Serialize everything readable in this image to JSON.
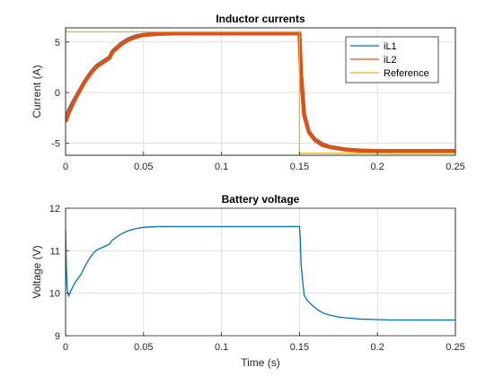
{
  "chart_data": [
    {
      "type": "line",
      "title": "Inductor currents",
      "xlabel": "",
      "ylabel": "Current (A)",
      "xlim": [
        0,
        0.25
      ],
      "ylim": [
        -6.2,
        6.4
      ],
      "xticks": [
        0,
        0.05,
        0.1,
        0.15,
        0.2,
        0.25
      ],
      "xtick_labels": [
        "0",
        "0.05",
        "0.1",
        "0.15",
        "0.2",
        "0.25"
      ],
      "yticks": [
        -5,
        0,
        5
      ],
      "ytick_labels": [
        "-5",
        "0",
        "5"
      ],
      "grid": true,
      "legend": {
        "position": "top-right",
        "entries": [
          "iL1",
          "iL2",
          "Reference"
        ]
      },
      "series": [
        {
          "name": "iL1",
          "color": "#0072BD",
          "x": [
            0,
            0.002,
            0.005,
            0.008,
            0.012,
            0.016,
            0.02,
            0.025,
            0.028,
            0.03,
            0.035,
            0.04,
            0.045,
            0.05,
            0.06,
            0.07,
            0.08,
            0.1,
            0.12,
            0.14,
            0.1495,
            0.15,
            0.151,
            0.153,
            0.156,
            0.16,
            0.165,
            0.17,
            0.18,
            0.19,
            0.2,
            0.22,
            0.25
          ],
          "y": [
            -2.6,
            -1.7,
            -0.8,
            0.0,
            1.1,
            2.0,
            2.7,
            3.2,
            3.5,
            4.1,
            4.8,
            5.3,
            5.6,
            5.75,
            5.85,
            5.9,
            5.9,
            5.9,
            5.9,
            5.9,
            5.9,
            5.9,
            2.0,
            -2.0,
            -3.8,
            -4.6,
            -5.1,
            -5.35,
            -5.6,
            -5.7,
            -5.75,
            -5.75,
            -5.75
          ]
        },
        {
          "name": "iL2",
          "color": "#D95319",
          "x": [
            0,
            0.002,
            0.005,
            0.008,
            0.012,
            0.016,
            0.02,
            0.025,
            0.028,
            0.03,
            0.035,
            0.04,
            0.045,
            0.05,
            0.06,
            0.07,
            0.08,
            0.1,
            0.12,
            0.14,
            0.1495,
            0.15,
            0.151,
            0.153,
            0.156,
            0.16,
            0.165,
            0.17,
            0.18,
            0.19,
            0.2,
            0.22,
            0.25
          ],
          "y": [
            -2.9,
            -2.0,
            -1.0,
            -0.1,
            1.0,
            1.9,
            2.6,
            3.1,
            3.4,
            4.0,
            4.7,
            5.2,
            5.5,
            5.7,
            5.8,
            5.85,
            5.85,
            5.85,
            5.85,
            5.85,
            5.85,
            5.85,
            1.8,
            -2.2,
            -3.9,
            -4.7,
            -5.2,
            -5.4,
            -5.65,
            -5.75,
            -5.8,
            -5.8,
            -5.8
          ]
        },
        {
          "name": "Reference",
          "color": "#EDB120",
          "x": [
            0,
            0.15,
            0.15,
            0.25
          ],
          "y": [
            6,
            6,
            -6,
            -6
          ]
        }
      ]
    },
    {
      "type": "line",
      "title": "Battery voltage",
      "xlabel": "Time (s)",
      "ylabel": "Voltage (V)",
      "xlim": [
        0,
        0.25
      ],
      "ylim": [
        9,
        12
      ],
      "xticks": [
        0,
        0.05,
        0.1,
        0.15,
        0.2,
        0.25
      ],
      "xtick_labels": [
        "0",
        "0.05",
        "0.1",
        "0.15",
        "0.2",
        "0.25"
      ],
      "yticks": [
        9,
        10,
        11,
        12
      ],
      "ytick_labels": [
        "9",
        "10",
        "11",
        "12"
      ],
      "grid": true,
      "series": [
        {
          "color": "#0072BD",
          "x": [
            0,
            0.0005,
            0.001,
            0.002,
            0.004,
            0.006,
            0.008,
            0.01,
            0.012,
            0.015,
            0.018,
            0.02,
            0.025,
            0.028,
            0.03,
            0.035,
            0.04,
            0.045,
            0.05,
            0.055,
            0.06,
            0.08,
            0.1,
            0.12,
            0.14,
            0.1495,
            0.15,
            0.1505,
            0.151,
            0.152,
            0.153,
            0.155,
            0.158,
            0.162,
            0.166,
            0.17,
            0.175,
            0.18,
            0.19,
            0.2,
            0.21,
            0.22,
            0.25
          ],
          "y": [
            11.5,
            10.6,
            10.1,
            9.93,
            10.1,
            10.25,
            10.35,
            10.45,
            10.6,
            10.8,
            10.95,
            11.02,
            11.1,
            11.15,
            11.25,
            11.38,
            11.47,
            11.52,
            11.55,
            11.56,
            11.57,
            11.57,
            11.57,
            11.57,
            11.57,
            11.57,
            11.57,
            11.3,
            10.7,
            10.3,
            9.95,
            9.83,
            9.72,
            9.6,
            9.52,
            9.48,
            9.44,
            9.42,
            9.39,
            9.38,
            9.37,
            9.37,
            9.37
          ]
        }
      ]
    }
  ]
}
